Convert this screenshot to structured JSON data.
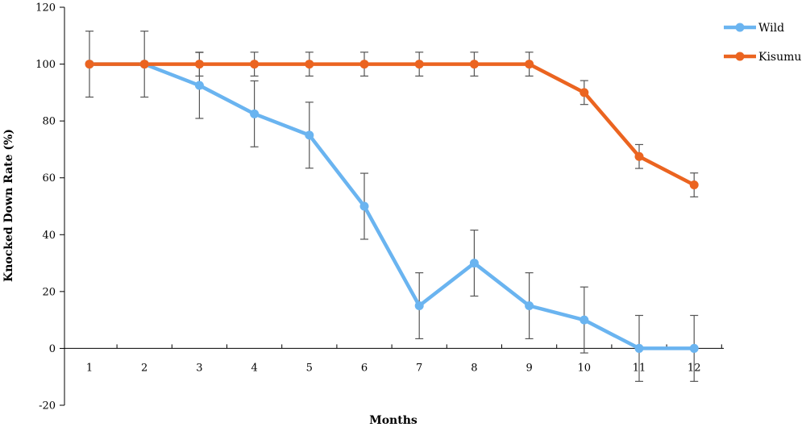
{
  "chart_data": {
    "type": "line",
    "xlabel": "Months",
    "ylabel": "Knocked Down Rate (%)",
    "categories": [
      "1",
      "2",
      "3",
      "4",
      "5",
      "6",
      "7",
      "8",
      "9",
      "10",
      "11",
      "12"
    ],
    "ylim": [
      -20,
      120
    ],
    "yticks": [
      -20,
      0,
      20,
      40,
      60,
      80,
      100,
      120
    ],
    "legend_position": "top-right",
    "grid": false,
    "series": [
      {
        "name": "Wild",
        "color": "#6ab4f0",
        "values": [
          100,
          100,
          92.5,
          82.5,
          75,
          50,
          15,
          30,
          15,
          10,
          0,
          0
        ],
        "error": [
          0,
          0,
          11.6,
          11.6,
          11.6,
          11.6,
          11.6,
          11.6,
          11.6,
          11.6,
          11.6,
          11.6
        ]
      },
      {
        "name": "Kisumu",
        "color": "#eb6420",
        "values": [
          100,
          100,
          100,
          100,
          100,
          100,
          100,
          100,
          100,
          90,
          67.5,
          57.5
        ],
        "error": [
          11.6,
          11.6,
          4.2,
          4.2,
          4.2,
          4.2,
          4.2,
          4.2,
          4.2,
          4.2,
          4.2,
          4.2
        ]
      }
    ]
  }
}
